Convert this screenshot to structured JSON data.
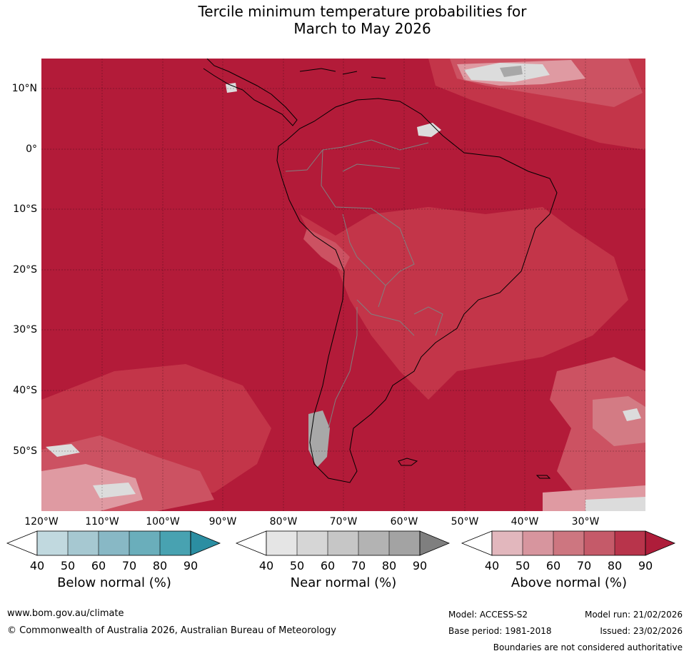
{
  "title": {
    "line1": "Tercile minimum temperature probabilities for",
    "line2": "March to May 2026"
  },
  "map": {
    "latitude_labels": [
      "10°N",
      "0°",
      "10°S",
      "20°S",
      "30°S",
      "40°S",
      "50°S"
    ],
    "longitude_labels": [
      "120°W",
      "110°W",
      "100°W",
      "90°W",
      "80°W",
      "70°W",
      "60°W",
      "50°W",
      "40°W",
      "30°W"
    ],
    "colors": {
      "sea_dominant": "#b31b39",
      "above_80": "#c33549",
      "above_70": "#cc5262",
      "above_60": "#d37b84",
      "above_50": "#df9aa2",
      "near_40": "#dcdcdc",
      "near_60": "#a8a8a8",
      "coast": "#000000",
      "border": "#808080"
    }
  },
  "legends": [
    {
      "title": "Below normal (%)",
      "ticks": [
        "40",
        "50",
        "60",
        "70",
        "80",
        "90"
      ],
      "colors": [
        "#ffffff",
        "#c1d9df",
        "#a6c8d1",
        "#88b8c5",
        "#6aaebb",
        "#48a2b1",
        "#2b8ea2"
      ]
    },
    {
      "title": "Near normal (%)",
      "ticks": [
        "40",
        "50",
        "60",
        "70",
        "80",
        "90"
      ],
      "colors": [
        "#ffffff",
        "#e5e5e5",
        "#d6d6d6",
        "#c6c6c6",
        "#b3b3b3",
        "#a3a3a3",
        "#7f7f7f"
      ]
    },
    {
      "title": "Above normal (%)",
      "ticks": [
        "40",
        "50",
        "60",
        "70",
        "80",
        "90"
      ],
      "colors": [
        "#ffffff",
        "#e2b7bd",
        "#d7959e",
        "#cd7680",
        "#c55a69",
        "#b8344b",
        "#ae1d3a"
      ]
    }
  ],
  "footer": {
    "website": "www.bom.gov.au/climate",
    "copyright": "© Commonwealth of Australia 2026, Australian Bureau of Meteorology",
    "model": "Model: ACCESS-S2",
    "model_run": "Model run: 21/02/2026",
    "base_period": "Base period: 1981-2018",
    "issued": "Issued: 23/02/2026",
    "disclaimer": "Boundaries are not considered authoritative"
  }
}
